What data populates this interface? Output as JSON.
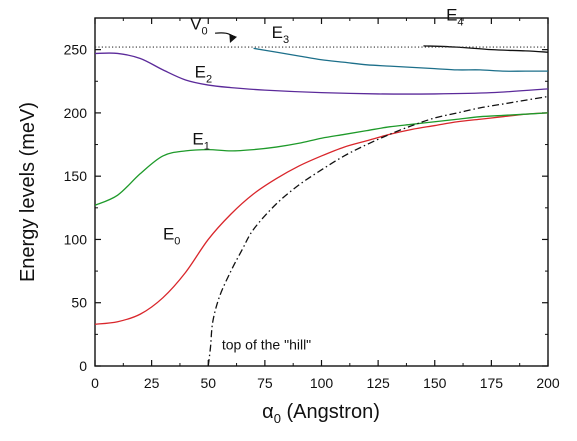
{
  "chart_data": {
    "type": "line",
    "title": "",
    "xlabel": "α0 (Angstron)",
    "ylabel": "Energy levels  (meV)",
    "xlim": [
      0,
      200
    ],
    "ylim": [
      0,
      275
    ],
    "xticks": [
      0,
      25,
      50,
      75,
      100,
      125,
      150,
      175,
      200
    ],
    "yticks": [
      0,
      50,
      100,
      150,
      200,
      250
    ],
    "grid": false,
    "series": [
      {
        "name": "E0",
        "color": "#d9262b",
        "dash": "solid",
        "points": [
          [
            0,
            33
          ],
          [
            10,
            35
          ],
          [
            20,
            41
          ],
          [
            30,
            54
          ],
          [
            40,
            74
          ],
          [
            50,
            100
          ],
          [
            60,
            120
          ],
          [
            70,
            136
          ],
          [
            80,
            148
          ],
          [
            90,
            158
          ],
          [
            100,
            166
          ],
          [
            110,
            173
          ],
          [
            120,
            178
          ],
          [
            130,
            183
          ],
          [
            140,
            187
          ],
          [
            150,
            190
          ],
          [
            160,
            193
          ],
          [
            170,
            195
          ],
          [
            180,
            197
          ],
          [
            190,
            199
          ],
          [
            200,
            200
          ]
        ]
      },
      {
        "name": "E1",
        "color": "#1e9a2a",
        "dash": "solid",
        "points": [
          [
            0,
            127
          ],
          [
            10,
            135
          ],
          [
            20,
            152
          ],
          [
            30,
            166
          ],
          [
            40,
            170
          ],
          [
            50,
            171
          ],
          [
            60,
            170
          ],
          [
            70,
            171
          ],
          [
            80,
            173
          ],
          [
            90,
            176
          ],
          [
            100,
            180
          ],
          [
            110,
            183
          ],
          [
            120,
            186
          ],
          [
            130,
            189
          ],
          [
            140,
            191
          ],
          [
            150,
            193
          ],
          [
            160,
            195
          ],
          [
            170,
            197
          ],
          [
            180,
            198
          ],
          [
            190,
            199
          ],
          [
            200,
            200
          ]
        ]
      },
      {
        "name": "E2",
        "color": "#5b2a9a",
        "dash": "solid",
        "points": [
          [
            0,
            247
          ],
          [
            10,
            247
          ],
          [
            20,
            243
          ],
          [
            30,
            234
          ],
          [
            40,
            226
          ],
          [
            50,
            222
          ],
          [
            60,
            220
          ],
          [
            75,
            218
          ],
          [
            100,
            216
          ],
          [
            125,
            215
          ],
          [
            150,
            215
          ],
          [
            175,
            216
          ],
          [
            200,
            219
          ]
        ]
      },
      {
        "name": "E3",
        "color": "#1c6f8a",
        "dash": "solid",
        "points": [
          [
            70,
            251
          ],
          [
            80,
            248
          ],
          [
            90,
            245
          ],
          [
            100,
            242
          ],
          [
            110,
            240
          ],
          [
            120,
            238
          ],
          [
            130,
            237
          ],
          [
            140,
            236
          ],
          [
            150,
            235
          ],
          [
            160,
            234
          ],
          [
            170,
            234
          ],
          [
            180,
            233
          ],
          [
            190,
            233
          ],
          [
            200,
            233
          ]
        ]
      },
      {
        "name": "E4",
        "color": "#111111",
        "dash": "solid",
        "points": [
          [
            145,
            253
          ],
          [
            160,
            252
          ],
          [
            175,
            250
          ],
          [
            190,
            249
          ],
          [
            200,
            248
          ]
        ]
      },
      {
        "name": "V0",
        "color": "#333333",
        "dash": "dotted",
        "points": [
          [
            0,
            252
          ],
          [
            200,
            252
          ]
        ]
      },
      {
        "name": "top of the \"hill\"",
        "color": "#111111",
        "dash": "dashdot",
        "points": [
          [
            50,
            0
          ],
          [
            51,
            15
          ],
          [
            52,
            35
          ],
          [
            55,
            55
          ],
          [
            60,
            75
          ],
          [
            65,
            92
          ],
          [
            70,
            108
          ],
          [
            80,
            128
          ],
          [
            90,
            143
          ],
          [
            100,
            155
          ],
          [
            110,
            166
          ],
          [
            120,
            175
          ],
          [
            130,
            183
          ],
          [
            140,
            190
          ],
          [
            150,
            196
          ],
          [
            160,
            200
          ],
          [
            170,
            204
          ],
          [
            180,
            207
          ],
          [
            190,
            210
          ],
          [
            200,
            213
          ]
        ]
      }
    ],
    "annotations": [
      {
        "id": "E0",
        "base": "E",
        "sub": "0",
        "x": 30,
        "y": 100
      },
      {
        "id": "E1",
        "base": "E",
        "sub": "1",
        "x": 43,
        "y": 175
      },
      {
        "id": "E2",
        "base": "E",
        "sub": "2",
        "x": 44,
        "y": 228
      },
      {
        "id": "E3",
        "base": "E",
        "sub": "3",
        "x": 78,
        "y": 259
      },
      {
        "id": "E4",
        "base": "E",
        "sub": "4",
        "x": 155,
        "y": 273
      },
      {
        "id": "V0",
        "base": "V",
        "sub": "0",
        "x": 42,
        "y": 266
      },
      {
        "id": "hill",
        "text": "top of the \"hill\"",
        "x": 56,
        "y": 13
      }
    ],
    "v0_arrow": {
      "from": [
        53,
        263
      ],
      "to": [
        60,
        257
      ]
    }
  }
}
